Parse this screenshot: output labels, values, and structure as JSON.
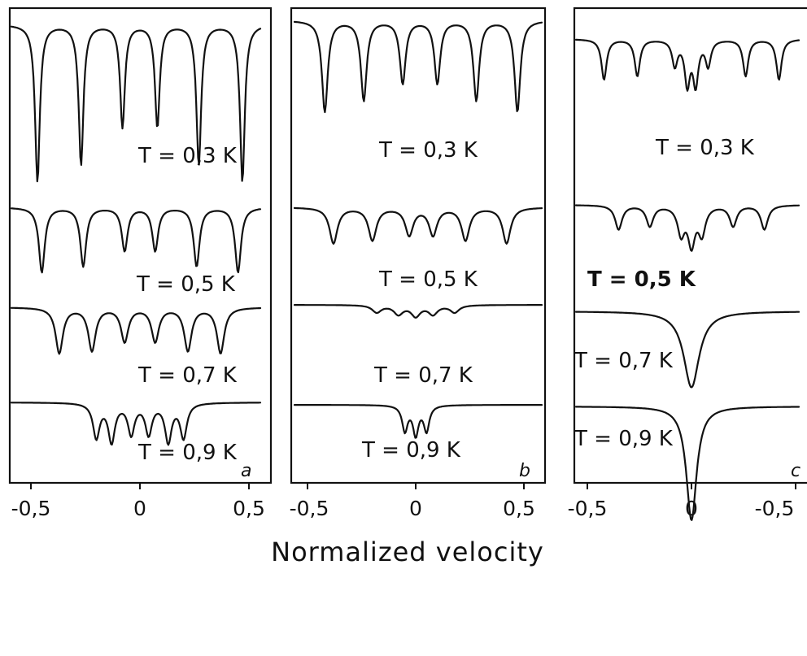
{
  "chart_data": {
    "type": "line",
    "xlabel": "Normalized velocity",
    "panels": [
      {
        "label": "a",
        "xticks": [
          "-0,5",
          "0",
          "0,5"
        ],
        "series": [
          {
            "label": "T = 0,3 K",
            "lines": [
              -0.47,
              -0.27,
              -0.08,
              0.08,
              0.27,
              0.47
            ],
            "depths": [
              0.92,
              0.82,
              0.6,
              0.6,
              0.82,
              0.92
            ],
            "width": 0.013
          },
          {
            "label": "T = 0,5 K",
            "lines": [
              -0.45,
              -0.26,
              -0.07,
              0.07,
              0.26,
              0.45
            ],
            "depths": [
              0.84,
              0.76,
              0.56,
              0.56,
              0.76,
              0.84
            ],
            "width": 0.016
          },
          {
            "label": "T = 0,7 K",
            "lines": [
              -0.37,
              -0.22,
              -0.07,
              0.07,
              0.22,
              0.37
            ],
            "depths": [
              0.7,
              0.66,
              0.52,
              0.52,
              0.66,
              0.7
            ],
            "width": 0.02
          },
          {
            "label": "T = 0,9 K",
            "lines": [
              -0.2,
              -0.13,
              -0.04,
              0.04,
              0.13,
              0.2
            ],
            "depths": [
              0.45,
              0.5,
              0.4,
              0.4,
              0.5,
              0.45
            ],
            "width": 0.018
          }
        ]
      },
      {
        "label": "b",
        "xticks": [
          "-0,5",
          "0",
          "0,5"
        ],
        "series": [
          {
            "label": "T = 0,3 K",
            "lines": [
              -0.42,
              -0.24,
              -0.06,
              0.1,
              0.28,
              0.47
            ],
            "depths": [
              0.8,
              0.7,
              0.55,
              0.55,
              0.7,
              0.8
            ],
            "width": 0.016
          },
          {
            "label": "T = 0,5 K",
            "lines": [
              -0.38,
              -0.2,
              -0.03,
              0.08,
              0.23,
              0.42
            ],
            "depths": [
              0.55,
              0.5,
              0.42,
              0.42,
              0.5,
              0.55
            ],
            "width": 0.022
          },
          {
            "label": "T = 0,7 K",
            "lines": [
              -0.18,
              -0.08,
              0.0,
              0.08,
              0.18
            ],
            "depths": [
              0.2,
              0.25,
              0.3,
              0.25,
              0.2
            ],
            "width": 0.025
          },
          {
            "label": "T = 0,9 K",
            "lines": [
              -0.05,
              0.0,
              0.05
            ],
            "depths": [
              0.35,
              0.4,
              0.35
            ],
            "width": 0.015
          }
        ]
      },
      {
        "label": "c",
        "xticks": [
          "-0,5",
          "0",
          "-0,5"
        ],
        "series": [
          {
            "label": "T = 0,3 K",
            "lines": [
              -0.42,
              -0.26,
              -0.08,
              -0.02,
              0.02,
              0.08,
              0.26,
              0.42
            ],
            "depths": [
              0.55,
              0.5,
              0.35,
              0.6,
              0.6,
              0.35,
              0.5,
              0.55
            ],
            "width": 0.015
          },
          {
            "label": "T = 0,5 K",
            "lines": [
              -0.35,
              -0.2,
              -0.05,
              0.0,
              0.05,
              0.2,
              0.35
            ],
            "depths": [
              0.35,
              0.3,
              0.4,
              0.55,
              0.4,
              0.3,
              0.35
            ],
            "width": 0.02
          },
          {
            "label": "T = 0,7 K",
            "lines": [
              0.0
            ],
            "depths": [
              0.85
            ],
            "width": 0.045
          },
          {
            "label": "T = 0,9 K",
            "lines": [
              0.0
            ],
            "depths": [
              1.0
            ],
            "width": 0.03
          }
        ]
      }
    ]
  }
}
